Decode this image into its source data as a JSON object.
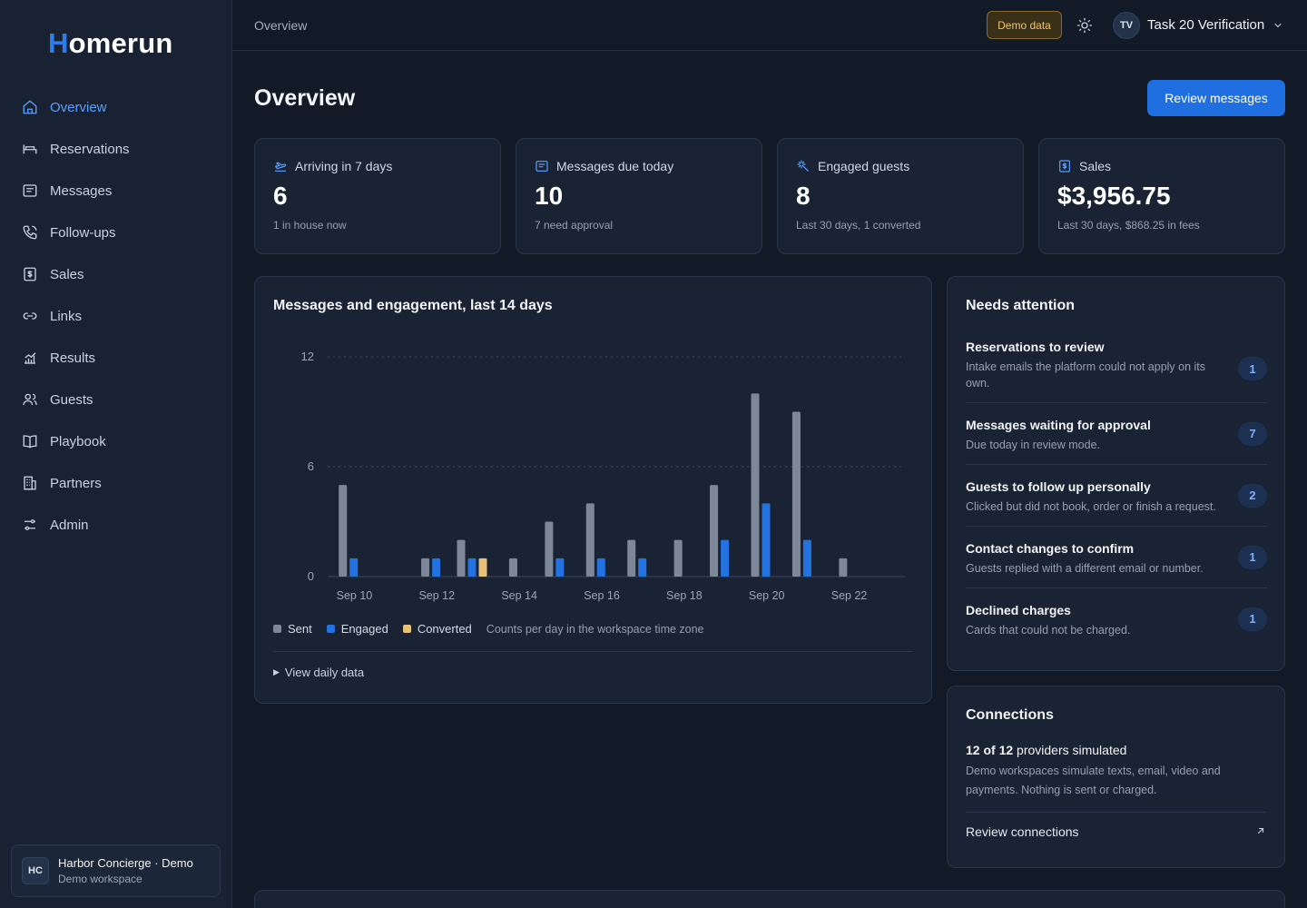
{
  "brand": {
    "logo_first": "H",
    "logo_rest": "omerun"
  },
  "sidebar": {
    "items": [
      {
        "label": "Overview",
        "icon": "home-icon",
        "active": true
      },
      {
        "label": "Reservations",
        "icon": "bed-icon"
      },
      {
        "label": "Messages",
        "icon": "message-icon"
      },
      {
        "label": "Follow-ups",
        "icon": "phone-icon"
      },
      {
        "label": "Sales",
        "icon": "receipt-icon"
      },
      {
        "label": "Links",
        "icon": "link-icon"
      },
      {
        "label": "Results",
        "icon": "chart-icon"
      },
      {
        "label": "Guests",
        "icon": "users-icon"
      },
      {
        "label": "Playbook",
        "icon": "book-icon"
      },
      {
        "label": "Partners",
        "icon": "building-icon"
      },
      {
        "label": "Admin",
        "icon": "sliders-icon"
      }
    ],
    "workspace": {
      "initials": "HC",
      "name": "Harbor Concierge · Demo",
      "subtitle": "Demo workspace"
    }
  },
  "topbar": {
    "breadcrumb": "Overview",
    "demo_badge": "Demo data",
    "theme_icon": "sun-icon",
    "user_initials": "TV",
    "user_name": "Task 20 Verification"
  },
  "main": {
    "title": "Overview",
    "review_button": "Review messages",
    "stats": [
      {
        "icon": "plane-icon",
        "label": "Arriving in 7 days",
        "value": "6",
        "sub": "1 in house now"
      },
      {
        "icon": "message-icon",
        "label": "Messages due today",
        "value": "10",
        "sub": "7 need approval"
      },
      {
        "icon": "sparkle-icon",
        "label": "Engaged guests",
        "value": "8",
        "sub": "Last 30 days, 1 converted"
      },
      {
        "icon": "receipt-icon",
        "label": "Sales",
        "value": "$3,956.75",
        "sub": "Last 30 days, $868.25 in fees"
      }
    ],
    "chart_card": {
      "title": "Messages and engagement, last 14 days",
      "legend_note": "Counts per day in the workspace time zone",
      "details_label": "View daily data"
    },
    "attention": {
      "title": "Needs attention",
      "items": [
        {
          "title": "Reservations to review",
          "desc": "Intake emails the platform could not apply on its own.",
          "count": "1"
        },
        {
          "title": "Messages waiting for approval",
          "desc": "Due today in review mode.",
          "count": "7"
        },
        {
          "title": "Guests to follow up personally",
          "desc": "Clicked but did not book, order or finish a request.",
          "count": "2"
        },
        {
          "title": "Contact changes to confirm",
          "desc": "Guests replied with a different email or number.",
          "count": "1"
        },
        {
          "title": "Declined charges",
          "desc": "Cards that could not be charged.",
          "count": "1"
        }
      ]
    },
    "connections": {
      "title": "Connections",
      "count_bold": "12 of 12",
      "count_rest": " providers simulated",
      "desc": "Demo workspaces simulate texts, email, video and payments. Nothing is sent or charged.",
      "link": "Review connections"
    }
  },
  "colors": {
    "sent": "#7d8798",
    "engaged": "#2272e0",
    "converted": "#e9c27a",
    "accent": "#1f6fe0"
  },
  "chart_data": {
    "type": "bar",
    "categories": [
      "Sep 10",
      "Sep 11",
      "Sep 12",
      "Sep 13",
      "Sep 14",
      "Sep 15",
      "Sep 16",
      "Sep 17",
      "Sep 18",
      "Sep 19",
      "Sep 20",
      "Sep 21",
      "Sep 22",
      "Sep 23"
    ],
    "tick_labels": [
      "Sep 10",
      "Sep 12",
      "Sep 14",
      "Sep 16",
      "Sep 18",
      "Sep 20",
      "Sep 22"
    ],
    "series": [
      {
        "name": "Sent",
        "values": [
          5,
          0,
          1,
          2,
          1,
          3,
          4,
          2,
          2,
          5,
          10,
          9,
          1,
          0
        ]
      },
      {
        "name": "Engaged",
        "values": [
          1,
          0,
          1,
          1,
          0,
          1,
          1,
          1,
          0,
          2,
          4,
          2,
          0,
          0
        ]
      },
      {
        "name": "Converted",
        "values": [
          0,
          0,
          0,
          1,
          0,
          0,
          0,
          0,
          0,
          0,
          0,
          0,
          0,
          0
        ]
      }
    ],
    "yticks": [
      0,
      6,
      12
    ],
    "ylim": [
      0,
      12
    ],
    "grid": true,
    "legend": "bottom-left"
  }
}
